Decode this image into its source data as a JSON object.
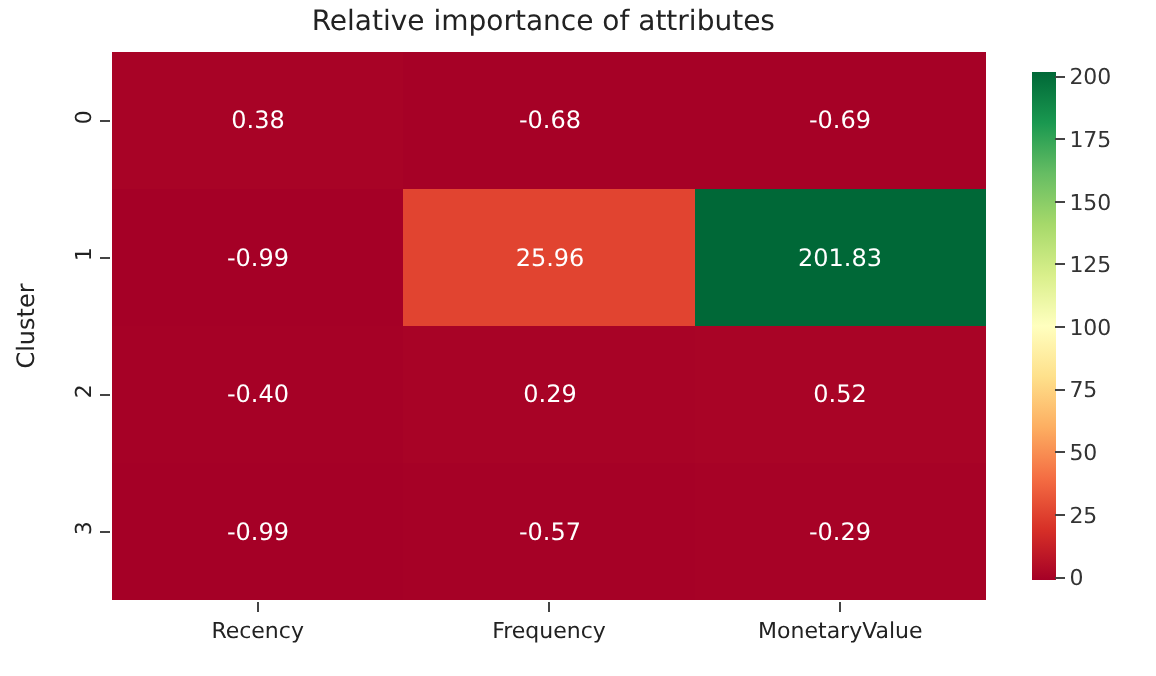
{
  "chart_data": {
    "type": "heatmap",
    "title": "Relative importance of attributes",
    "ylabel": "Cluster",
    "categories": [
      "Recency",
      "Frequency",
      "MonetaryValue"
    ],
    "y_categories": [
      "0",
      "1",
      "2",
      "3"
    ],
    "cells": [
      [
        0.38,
        -0.68,
        -0.69
      ],
      [
        -0.99,
        25.96,
        201.83
      ],
      [
        -0.4,
        0.29,
        0.52
      ],
      [
        -0.99,
        -0.57,
        -0.29
      ]
    ],
    "cell_labels": [
      [
        "0.38",
        "-0.68",
        "-0.69"
      ],
      [
        "-0.99",
        "25.96",
        "201.83"
      ],
      [
        "-0.40",
        "0.29",
        "0.52"
      ],
      [
        "-0.99",
        "-0.57",
        "-0.29"
      ]
    ],
    "clim": [
      -0.99,
      201.83
    ],
    "cticks": [
      0,
      25,
      50,
      75,
      100,
      125,
      150,
      175,
      200
    ]
  }
}
